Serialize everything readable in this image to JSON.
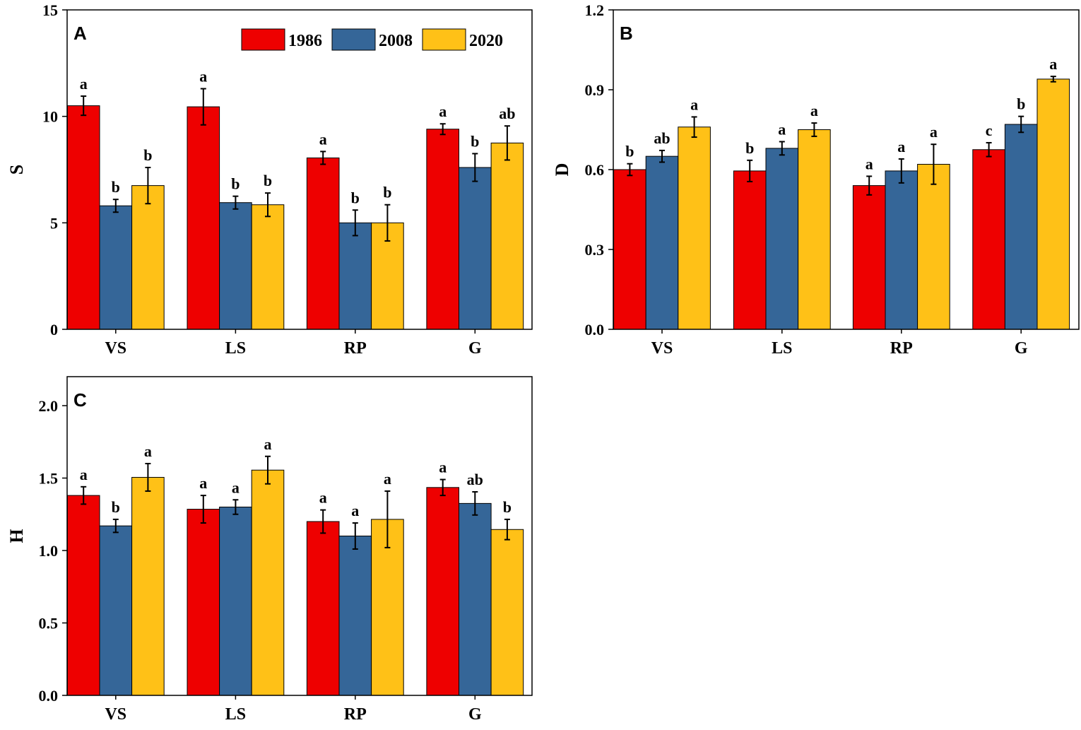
{
  "colors": {
    "1986": "#ee0000",
    "2008": "#356698",
    "2020": "#ffc117"
  },
  "legend": {
    "entries": [
      "1986",
      "2008",
      "2020"
    ]
  },
  "chart_data": [
    {
      "panel": "A",
      "type": "bar",
      "title": "A",
      "xlabel": "",
      "ylabel": "S",
      "ylim": [
        0,
        15
      ],
      "yticks": [
        0,
        5,
        10,
        15
      ],
      "categories": [
        "VS",
        "LS",
        "RP",
        "G"
      ],
      "series": [
        {
          "name": "1986",
          "values": [
            10.5,
            10.45,
            8.05,
            9.4
          ],
          "errors": [
            0.45,
            0.85,
            0.3,
            0.25
          ],
          "labels": [
            "a",
            "a",
            "a",
            "a"
          ]
        },
        {
          "name": "2008",
          "values": [
            5.8,
            5.95,
            5.0,
            7.6
          ],
          "errors": [
            0.3,
            0.3,
            0.6,
            0.65
          ],
          "labels": [
            "b",
            "b",
            "b",
            "b"
          ]
        },
        {
          "name": "2020",
          "values": [
            6.75,
            5.85,
            5.0,
            8.75
          ],
          "errors": [
            0.85,
            0.55,
            0.85,
            0.8
          ],
          "labels": [
            "b",
            "b",
            "b",
            "ab"
          ]
        }
      ],
      "legend_position": "top-right"
    },
    {
      "panel": "B",
      "type": "bar",
      "title": "B",
      "xlabel": "",
      "ylabel": "D",
      "ylim": [
        0,
        1.2
      ],
      "yticks": [
        "0.0",
        "0.3",
        "0.6",
        "0.9",
        "1.2"
      ],
      "categories": [
        "VS",
        "LS",
        "RP",
        "G"
      ],
      "series": [
        {
          "name": "1986",
          "values": [
            0.6,
            0.595,
            0.54,
            0.675
          ],
          "errors": [
            0.022,
            0.04,
            0.035,
            0.026
          ],
          "labels": [
            "b",
            "b",
            "a",
            "c"
          ]
        },
        {
          "name": "2008",
          "values": [
            0.65,
            0.68,
            0.595,
            0.77
          ],
          "errors": [
            0.022,
            0.025,
            0.045,
            0.03
          ],
          "labels": [
            "ab",
            "a",
            "a",
            "b"
          ]
        },
        {
          "name": "2020",
          "values": [
            0.76,
            0.75,
            0.62,
            0.94
          ],
          "errors": [
            0.038,
            0.025,
            0.075,
            0.01
          ],
          "labels": [
            "a",
            "a",
            "a",
            "a"
          ]
        }
      ]
    },
    {
      "panel": "C",
      "type": "bar",
      "title": "C",
      "xlabel": "",
      "ylabel": "H",
      "ylim": [
        0,
        2.2
      ],
      "yticks": [
        "0.0",
        "0.5",
        "1.0",
        "1.5",
        "2.0"
      ],
      "categories": [
        "VS",
        "LS",
        "RP",
        "G"
      ],
      "series": [
        {
          "name": "1986",
          "values": [
            1.38,
            1.285,
            1.2,
            1.435
          ],
          "errors": [
            0.06,
            0.095,
            0.08,
            0.055
          ],
          "labels": [
            "a",
            "a",
            "a",
            "a"
          ]
        },
        {
          "name": "2008",
          "values": [
            1.17,
            1.3,
            1.1,
            1.325
          ],
          "errors": [
            0.045,
            0.05,
            0.09,
            0.08
          ],
          "labels": [
            "b",
            "a",
            "a",
            "ab"
          ]
        },
        {
          "name": "2020",
          "values": [
            1.505,
            1.555,
            1.215,
            1.145
          ],
          "errors": [
            0.095,
            0.095,
            0.195,
            0.07
          ],
          "labels": [
            "a",
            "a",
            "a",
            "b"
          ]
        }
      ]
    }
  ]
}
